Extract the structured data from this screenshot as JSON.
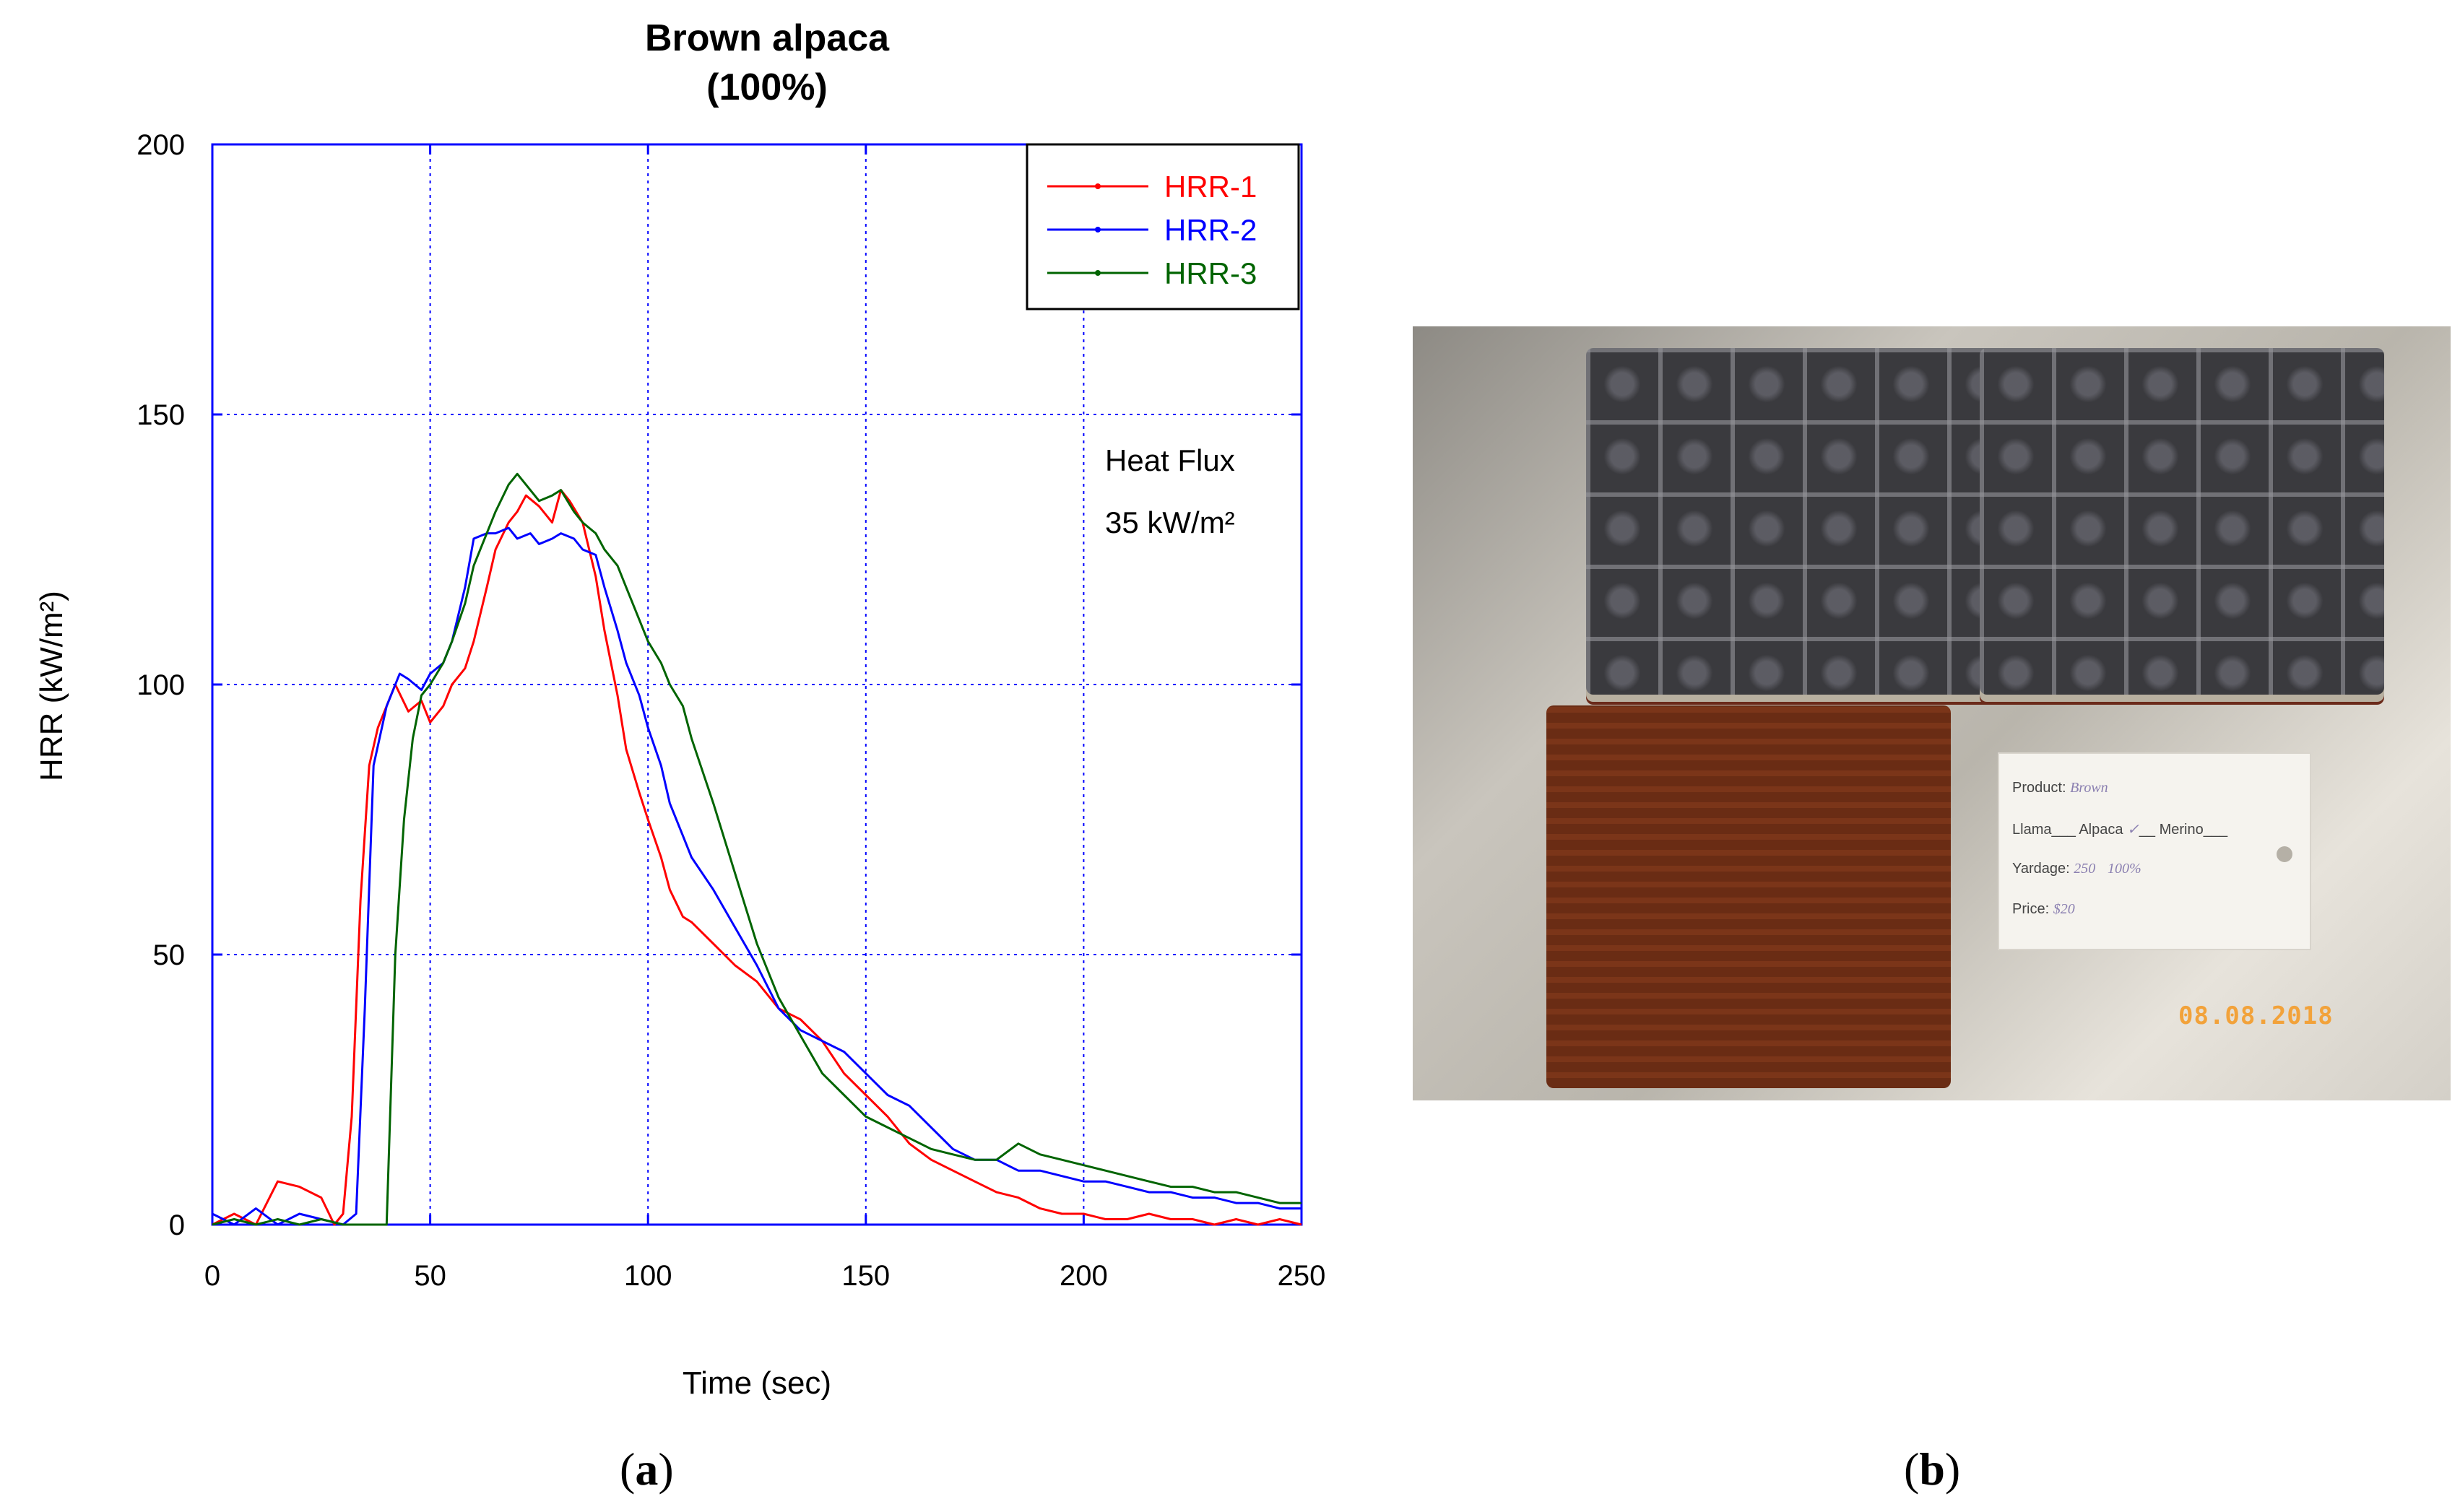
{
  "chart_data": {
    "type": "line",
    "title": "Brown alpaca",
    "subtitle": "(100%)",
    "xlabel": "Time (sec)",
    "ylabel": "HRR (kW/m²)",
    "xlim": [
      0,
      250
    ],
    "ylim": [
      0,
      200
    ],
    "xticks": [
      0,
      50,
      100,
      150,
      200,
      250
    ],
    "yticks": [
      0,
      50,
      100,
      150,
      200
    ],
    "grid": true,
    "legend_position": "top-right",
    "annotation": {
      "line1": "Heat Flux",
      "line2": "35 kW/m²"
    },
    "series": [
      {
        "name": "HRR-1",
        "color": "#ff0000",
        "x": [
          0,
          5,
          10,
          15,
          20,
          25,
          28,
          30,
          32,
          34,
          36,
          38,
          40,
          42,
          45,
          48,
          50,
          53,
          55,
          58,
          60,
          63,
          65,
          68,
          70,
          72,
          75,
          78,
          80,
          82,
          85,
          88,
          90,
          93,
          95,
          98,
          100,
          103,
          105,
          108,
          110,
          115,
          120,
          125,
          130,
          135,
          140,
          145,
          150,
          155,
          160,
          165,
          170,
          175,
          180,
          185,
          190,
          195,
          200,
          205,
          210,
          215,
          220,
          225,
          230,
          235,
          240,
          245,
          250
        ],
        "y": [
          0,
          2,
          0,
          8,
          7,
          5,
          0,
          2,
          20,
          60,
          85,
          92,
          96,
          100,
          95,
          97,
          93,
          96,
          100,
          103,
          108,
          118,
          125,
          130,
          132,
          135,
          133,
          130,
          136,
          134,
          130,
          120,
          110,
          98,
          88,
          80,
          75,
          68,
          62,
          57,
          56,
          52,
          48,
          45,
          40,
          38,
          34,
          28,
          24,
          20,
          15,
          12,
          10,
          8,
          6,
          5,
          3,
          2,
          2,
          1,
          1,
          2,
          1,
          1,
          0,
          1,
          0,
          1,
          0
        ]
      },
      {
        "name": "HRR-2",
        "color": "#0000ff",
        "x": [
          0,
          5,
          10,
          15,
          20,
          25,
          30,
          33,
          35,
          37,
          40,
          43,
          45,
          48,
          50,
          53,
          55,
          58,
          60,
          63,
          65,
          68,
          70,
          73,
          75,
          78,
          80,
          83,
          85,
          88,
          90,
          93,
          95,
          98,
          100,
          103,
          105,
          108,
          110,
          115,
          120,
          125,
          130,
          135,
          140,
          145,
          150,
          155,
          160,
          165,
          170,
          175,
          180,
          185,
          190,
          195,
          200,
          205,
          210,
          215,
          220,
          225,
          230,
          235,
          240,
          245,
          250
        ],
        "y": [
          2,
          0,
          3,
          0,
          2,
          1,
          0,
          2,
          40,
          85,
          96,
          102,
          101,
          99,
          102,
          104,
          108,
          118,
          127,
          128,
          128,
          129,
          127,
          128,
          126,
          127,
          128,
          127,
          125,
          124,
          118,
          110,
          104,
          98,
          92,
          85,
          78,
          72,
          68,
          62,
          55,
          48,
          40,
          36,
          34,
          32,
          28,
          24,
          22,
          18,
          14,
          12,
          12,
          10,
          10,
          9,
          8,
          8,
          7,
          6,
          6,
          5,
          5,
          4,
          4,
          3,
          3
        ]
      },
      {
        "name": "HRR-3",
        "color": "#006400",
        "x": [
          0,
          5,
          10,
          15,
          20,
          25,
          30,
          35,
          40,
          41,
          42,
          44,
          46,
          48,
          50,
          53,
          55,
          58,
          60,
          63,
          65,
          68,
          70,
          73,
          75,
          78,
          80,
          83,
          85,
          88,
          90,
          93,
          95,
          98,
          100,
          103,
          105,
          108,
          110,
          115,
          120,
          125,
          130,
          135,
          140,
          145,
          150,
          155,
          160,
          165,
          170,
          175,
          180,
          185,
          190,
          195,
          200,
          205,
          210,
          215,
          220,
          225,
          230,
          235,
          240,
          245,
          250
        ],
        "y": [
          0,
          1,
          0,
          1,
          0,
          1,
          0,
          0,
          0,
          25,
          50,
          75,
          90,
          98,
          100,
          104,
          108,
          115,
          122,
          128,
          132,
          137,
          139,
          136,
          134,
          135,
          136,
          132,
          130,
          128,
          125,
          122,
          118,
          112,
          108,
          104,
          100,
          96,
          90,
          78,
          65,
          52,
          42,
          35,
          28,
          24,
          20,
          18,
          16,
          14,
          13,
          12,
          12,
          15,
          13,
          12,
          11,
          10,
          9,
          8,
          7,
          7,
          6,
          6,
          5,
          4,
          4
        ]
      }
    ]
  },
  "figure": {
    "panel_a_label": "a",
    "panel_b_label": "b",
    "photo": {
      "tag_fields": {
        "product_label": "Product",
        "product_value": "Brown",
        "llama_label": "Llama",
        "alpaca_label": "Alpaca",
        "alpaca_mark": "✓",
        "merino_label": "Merino",
        "yardage_label": "Yardage",
        "yardage_value": "250",
        "percent_value": "100%",
        "price_label": "Price",
        "price_value": "$20"
      },
      "date_stamp": "08.08.2018"
    }
  }
}
